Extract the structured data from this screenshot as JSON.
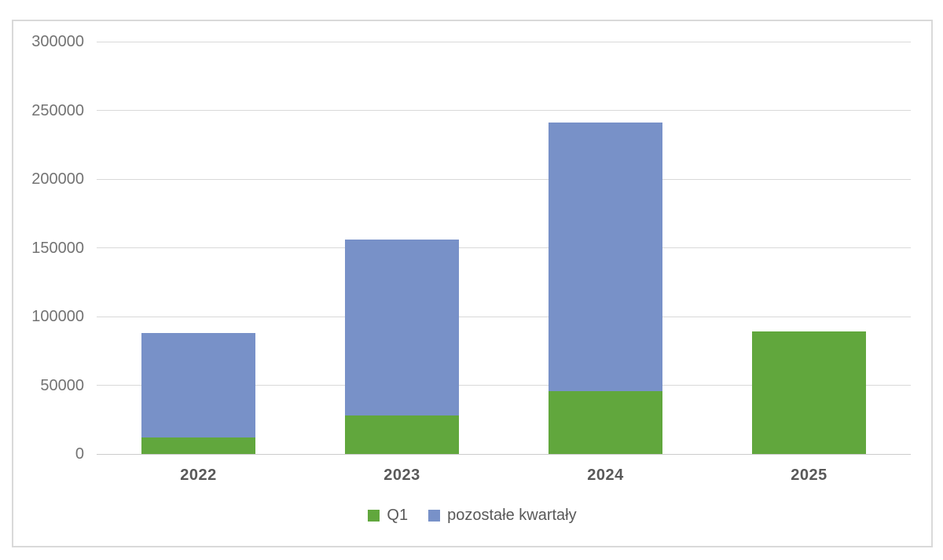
{
  "chart_data": {
    "type": "bar",
    "stacked": true,
    "title": "",
    "xlabel": "",
    "ylabel": "",
    "categories": [
      "2022",
      "2023",
      "2024",
      "2025"
    ],
    "series": [
      {
        "name": "Q1",
        "color": "#61a73d",
        "values": [
          12000,
          28000,
          46000,
          89000
        ]
      },
      {
        "name": "pozostałe kwartały",
        "color": "#7891c8",
        "values": [
          76000,
          128000,
          195000,
          0
        ]
      }
    ],
    "ylim": [
      0,
      300000
    ],
    "y_tick_step": 50000,
    "y_tick_labels": [
      "0",
      "50000",
      "100000",
      "150000",
      "200000",
      "250000",
      "300000"
    ],
    "grid": true,
    "gridline_color": "#d9d9d9",
    "legend_position": "bottom"
  },
  "colors": {
    "background": "#ffffff",
    "frame_border": "#d9d9d9",
    "gridline": "#d9d9d9",
    "y_axis_text": "#737373",
    "x_axis_text": "#595959",
    "legend_text": "#595959"
  }
}
